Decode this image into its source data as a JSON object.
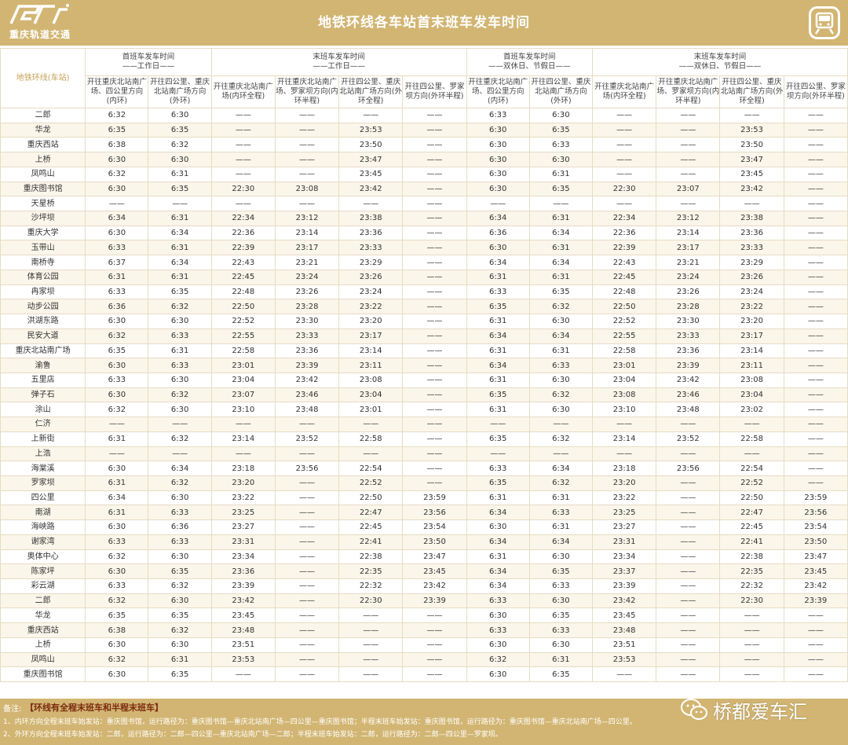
{
  "header": {
    "logo_text": "重庆轨道交通",
    "title": "地铁环线各车站首末班车发车时间"
  },
  "table": {
    "station_header": "地铁环线(车站)",
    "groups": [
      {
        "title": "首班车发车时间",
        "sub": "——工作日——"
      },
      {
        "title": "末班车发车时间",
        "sub": "——工作日——"
      },
      {
        "title": "首班车发车时间",
        "sub": "——双休日、节假日——"
      },
      {
        "title": "末班车发车时间",
        "sub": "——双休日、节假日——"
      }
    ],
    "columns": [
      "开往重庆北站南广场、四公里方向(内环)",
      "开往四公里、重庆北站南广场方向(外环)",
      "开往重庆北站南广场(内环全程)",
      "开往重庆北站南广场、罗家坝方向(内环半程)",
      "开往四公里、重庆北站南广场方向(外环全程)",
      "开往四公里、罗家坝方向(外环半程)",
      "开往重庆北站南广场、四公里方向(内环)",
      "开往四公里、重庆北站南广场方向(外环)",
      "开往重庆北站南广场(内环全程)",
      "开往重庆北站南广场、罗家坝方向(内环半程)",
      "开往四公里、重庆北站南广场方向(外环全程)",
      "开往四公里、罗家坝方向(外环半程)"
    ],
    "rows": [
      [
        "二郎",
        "6:32",
        "6:30",
        "——",
        "——",
        "——",
        "——",
        "6:33",
        "6:30",
        "——",
        "——",
        "——",
        "——"
      ],
      [
        "华龙",
        "6:35",
        "6:35",
        "——",
        "——",
        "23:53",
        "——",
        "6:30",
        "6:35",
        "——",
        "——",
        "23:53",
        "——"
      ],
      [
        "重庆西站",
        "6:38",
        "6:32",
        "——",
        "——",
        "23:50",
        "——",
        "6:30",
        "6:33",
        "——",
        "——",
        "23:50",
        "——"
      ],
      [
        "上桥",
        "6:30",
        "6:30",
        "——",
        "——",
        "23:47",
        "——",
        "6:30",
        "6:30",
        "——",
        "——",
        "23:47",
        "——"
      ],
      [
        "凤鸣山",
        "6:32",
        "6:31",
        "——",
        "——",
        "23:45",
        "——",
        "6:30",
        "6:31",
        "——",
        "——",
        "23:45",
        "——"
      ],
      [
        "重庆图书馆",
        "6:30",
        "6:35",
        "22:30",
        "23:08",
        "23:42",
        "——",
        "6:30",
        "6:35",
        "22:30",
        "23:07",
        "23:42",
        "——"
      ],
      [
        "天星桥",
        "——",
        "——",
        "——",
        "——",
        "——",
        "——",
        "——",
        "——",
        "——",
        "——",
        "——",
        "——"
      ],
      [
        "沙坪坝",
        "6:34",
        "6:31",
        "22:34",
        "23:12",
        "23:38",
        "——",
        "6:34",
        "6:31",
        "22:34",
        "23:12",
        "23:38",
        "——"
      ],
      [
        "重庆大学",
        "6:30",
        "6:34",
        "22:36",
        "23:14",
        "23:36",
        "——",
        "6:36",
        "6:34",
        "22:36",
        "23:14",
        "23:36",
        "——"
      ],
      [
        "玉带山",
        "6:33",
        "6:31",
        "22:39",
        "23:17",
        "23:33",
        "——",
        "6:30",
        "6:31",
        "22:39",
        "23:17",
        "23:33",
        "——"
      ],
      [
        "南桥寺",
        "6:37",
        "6:34",
        "22:43",
        "23:21",
        "23:29",
        "——",
        "6:34",
        "6:34",
        "22:43",
        "23:21",
        "23:29",
        "——"
      ],
      [
        "体育公园",
        "6:31",
        "6:31",
        "22:45",
        "23:24",
        "23:26",
        "——",
        "6:31",
        "6:31",
        "22:45",
        "23:24",
        "23:26",
        "——"
      ],
      [
        "冉家坝",
        "6:33",
        "6:35",
        "22:48",
        "23:26",
        "23:24",
        "——",
        "6:33",
        "6:35",
        "22:48",
        "23:26",
        "23:24",
        "——"
      ],
      [
        "动步公园",
        "6:36",
        "6:32",
        "22:50",
        "23:28",
        "23:22",
        "——",
        "6:35",
        "6:32",
        "22:50",
        "23:28",
        "23:22",
        "——"
      ],
      [
        "洪湖东路",
        "6:30",
        "6:30",
        "22:52",
        "23:30",
        "23:20",
        "——",
        "6:31",
        "6:30",
        "22:52",
        "23:30",
        "23:20",
        "——"
      ],
      [
        "民安大道",
        "6:32",
        "6:33",
        "22:55",
        "23:33",
        "23:17",
        "——",
        "6:34",
        "6:34",
        "22:55",
        "23:33",
        "23:17",
        "——"
      ],
      [
        "重庆北站南广场",
        "6:35",
        "6:31",
        "22:58",
        "23:36",
        "23:14",
        "——",
        "6:31",
        "6:31",
        "22:58",
        "23:36",
        "23:14",
        "——"
      ],
      [
        "渝鲁",
        "6:30",
        "6:33",
        "23:01",
        "23:39",
        "23:11",
        "——",
        "6:34",
        "6:33",
        "23:01",
        "23:39",
        "23:11",
        "——"
      ],
      [
        "五里店",
        "6:33",
        "6:30",
        "23:04",
        "23:42",
        "23:08",
        "——",
        "6:31",
        "6:30",
        "23:04",
        "23:42",
        "23:08",
        "——"
      ],
      [
        "弹子石",
        "6:30",
        "6:32",
        "23:07",
        "23:46",
        "23:04",
        "——",
        "6:35",
        "6:32",
        "23:08",
        "23:46",
        "23:04",
        "——"
      ],
      [
        "涂山",
        "6:32",
        "6:30",
        "23:10",
        "23:48",
        "23:01",
        "——",
        "6:31",
        "6:30",
        "23:10",
        "23:48",
        "23:02",
        "——"
      ],
      [
        "仁济",
        "——",
        "——",
        "——",
        "——",
        "——",
        "——",
        "——",
        "——",
        "——",
        "——",
        "——",
        "——"
      ],
      [
        "上新街",
        "6:31",
        "6:32",
        "23:14",
        "23:52",
        "22:58",
        "——",
        "6:35",
        "6:32",
        "23:14",
        "23:52",
        "22:58",
        "——"
      ],
      [
        "上浩",
        "——",
        "——",
        "——",
        "——",
        "——",
        "——",
        "——",
        "——",
        "——",
        "——",
        "——",
        "——"
      ],
      [
        "海棠溪",
        "6:30",
        "6:34",
        "23:18",
        "23:56",
        "22:54",
        "——",
        "6:33",
        "6:34",
        "23:18",
        "23:56",
        "22:54",
        "——"
      ],
      [
        "罗家坝",
        "6:31",
        "6:32",
        "23:20",
        "——",
        "22:52",
        "——",
        "6:35",
        "6:32",
        "23:20",
        "——",
        "22:52",
        "——"
      ],
      [
        "四公里",
        "6:34",
        "6:30",
        "23:22",
        "——",
        "22:50",
        "23:59",
        "6:31",
        "6:31",
        "23:22",
        "——",
        "22:50",
        "23:59"
      ],
      [
        "南湖",
        "6:31",
        "6:33",
        "23:25",
        "——",
        "22:47",
        "23:56",
        "6:34",
        "6:33",
        "23:25",
        "——",
        "22:47",
        "23:56"
      ],
      [
        "海峡路",
        "6:30",
        "6:36",
        "23:27",
        "——",
        "22:45",
        "23:54",
        "6:30",
        "6:31",
        "23:27",
        "——",
        "22:45",
        "23:54"
      ],
      [
        "谢家湾",
        "6:33",
        "6:33",
        "23:31",
        "——",
        "22:41",
        "23:50",
        "6:34",
        "6:34",
        "23:31",
        "——",
        "22:41",
        "23:50"
      ],
      [
        "奥体中心",
        "6:32",
        "6:30",
        "23:34",
        "——",
        "22:38",
        "23:47",
        "6:31",
        "6:30",
        "23:34",
        "——",
        "22:38",
        "23:47"
      ],
      [
        "陈家坪",
        "6:30",
        "6:35",
        "23:36",
        "——",
        "22:35",
        "23:45",
        "6:34",
        "6:35",
        "23:37",
        "——",
        "22:35",
        "23:45"
      ],
      [
        "彩云湖",
        "6:33",
        "6:32",
        "23:39",
        "——",
        "22:32",
        "23:42",
        "6:34",
        "6:33",
        "23:39",
        "——",
        "22:32",
        "23:42"
      ],
      [
        "二郎",
        "6:32",
        "6:30",
        "23:42",
        "——",
        "22:30",
        "23:39",
        "6:33",
        "6:30",
        "23:42",
        "——",
        "22:30",
        "23:39"
      ],
      [
        "华龙",
        "6:35",
        "6:35",
        "23:45",
        "——",
        "——",
        "——",
        "6:30",
        "6:35",
        "23:45",
        "——",
        "——",
        "——"
      ],
      [
        "重庆西站",
        "6:38",
        "6:32",
        "23:48",
        "——",
        "——",
        "——",
        "6:33",
        "6:33",
        "23:48",
        "——",
        "——",
        "——"
      ],
      [
        "上桥",
        "6:30",
        "6:30",
        "23:51",
        "——",
        "——",
        "——",
        "6:30",
        "6:30",
        "23:51",
        "——",
        "——",
        "——"
      ],
      [
        "凤鸣山",
        "6:32",
        "6:31",
        "23:53",
        "——",
        "——",
        "——",
        "6:32",
        "6:31",
        "23:53",
        "——",
        "——",
        "——"
      ],
      [
        "重庆图书馆",
        "6:30",
        "6:35",
        "——",
        "——",
        "——",
        "——",
        "6:30",
        "6:35",
        "——",
        "——",
        "——",
        "——"
      ]
    ]
  },
  "footer": {
    "label": "备注:",
    "title": "【环线有全程末班车和半程末班车】",
    "note1": "1、内环方向全程末班车始发站：重庆图书馆，运行路径为：重庆图书馆—重庆北站南广场—四公里—重庆图书馆；半程末班车始发站：重庆图书馆，运行路径为：重庆图书馆—重庆北站南广场—四公里。",
    "note2": "2、外环方向全程末班车始发站：二郎，运行路径为：二郎—四公里—重庆北站南广场—二郎；半程末班车始发站：二郎，运行路径为：二郎—四公里—罗家坝。",
    "watermark": "桥都爱车汇"
  },
  "colors": {
    "gold": "#d2b572",
    "station_label": "#c5a158",
    "note_title": "#7a2a10",
    "stripe": "#fbf6ea"
  }
}
